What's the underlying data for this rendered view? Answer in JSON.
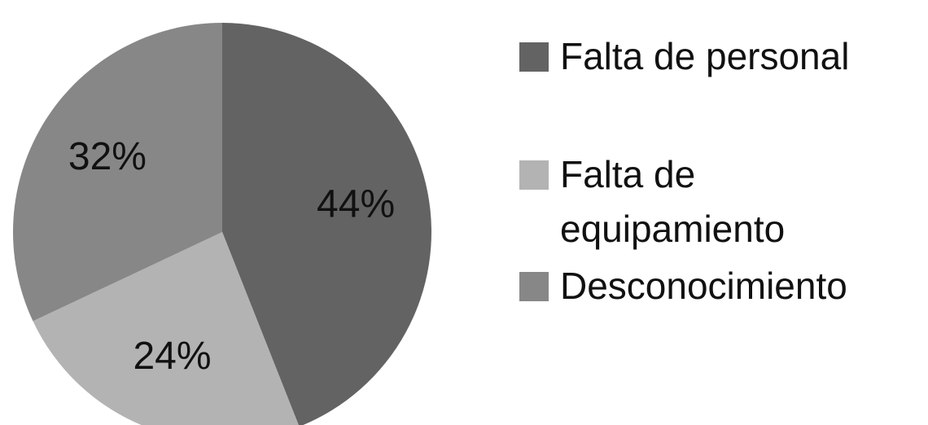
{
  "chart_data": {
    "type": "pie",
    "categories": [
      "Falta de personal",
      "Falta de equipamiento",
      "Desconocimiento"
    ],
    "values": [
      44,
      24,
      32
    ],
    "value_labels": [
      "44%",
      "24%",
      "32%"
    ],
    "colors": [
      "#636363",
      "#b3b3b3",
      "#878787"
    ],
    "legend": "right"
  }
}
